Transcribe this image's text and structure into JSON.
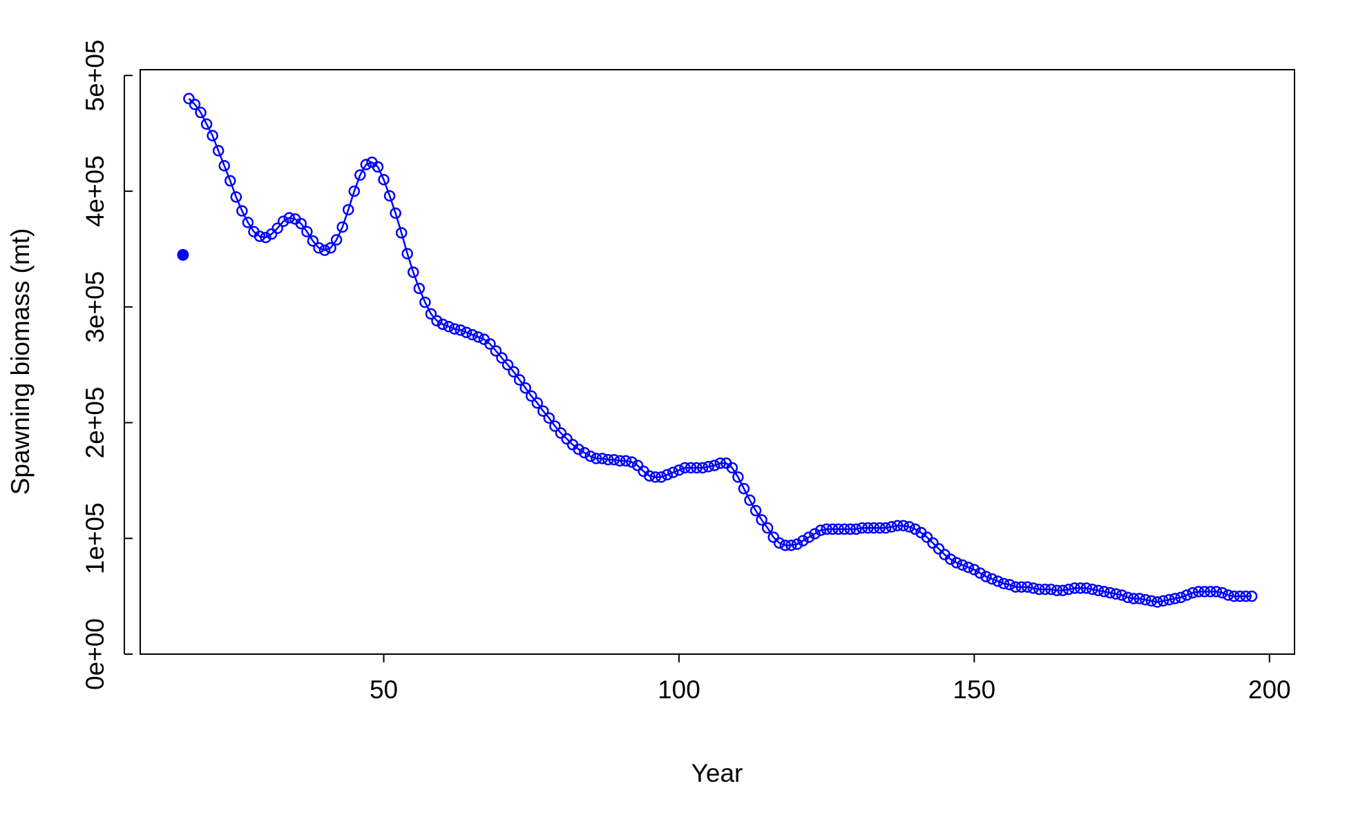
{
  "chart_data": {
    "type": "scatter",
    "x_label": "Year",
    "y_label": "Spawning biomass (mt)",
    "xlim": [
      8.76,
      204.24
    ],
    "ylim": [
      0,
      505000
    ],
    "xticks": [
      50,
      100,
      150,
      200
    ],
    "yticks": [
      {
        "value": 0,
        "label": "0e+00"
      },
      {
        "value": 100000,
        "label": "1e+05"
      },
      {
        "value": 200000,
        "label": "2e+05"
      },
      {
        "value": 300000,
        "label": "3e+05"
      },
      {
        "value": 400000,
        "label": "4e+05"
      },
      {
        "value": 500000,
        "label": "5e+05"
      }
    ],
    "grid": false,
    "series": [
      {
        "color": "#0000ff",
        "marker": "open",
        "line": true,
        "x": [
          17,
          18,
          19,
          20,
          21,
          22,
          23,
          24,
          25,
          26,
          27,
          28,
          29,
          30,
          31,
          32,
          33,
          34,
          35,
          36,
          37,
          38,
          39,
          40,
          41,
          42,
          43,
          44,
          45,
          46,
          47,
          48,
          49,
          50,
          51,
          52,
          53,
          54,
          55,
          56,
          57,
          58,
          59,
          60,
          61,
          62,
          63,
          64,
          65,
          66,
          67,
          68,
          69,
          70,
          71,
          72,
          73,
          74,
          75,
          76,
          77,
          78,
          79,
          80,
          81,
          82,
          83,
          84,
          85,
          86,
          87,
          88,
          89,
          90,
          91,
          92,
          93,
          94,
          95,
          96,
          97,
          98,
          99,
          100,
          101,
          102,
          103,
          104,
          105,
          106,
          107,
          108,
          109,
          110,
          111,
          112,
          113,
          114,
          115,
          116,
          117,
          118,
          119,
          120,
          121,
          122,
          123,
          124,
          125,
          126,
          127,
          128,
          129,
          130,
          131,
          132,
          133,
          134,
          135,
          136,
          137,
          138,
          139,
          140,
          141,
          142,
          143,
          144,
          145,
          146,
          147,
          148,
          149,
          150,
          151,
          152,
          153,
          154,
          155,
          156,
          157,
          158,
          159,
          160,
          161,
          162,
          163,
          164,
          165,
          166,
          167,
          168,
          169,
          170,
          171,
          172,
          173,
          174,
          175,
          176,
          177,
          178,
          179,
          180,
          181,
          182,
          183,
          184,
          185,
          186,
          187,
          188,
          189,
          190,
          191,
          192,
          193,
          194,
          195,
          196,
          197
        ],
        "values": [
          480000,
          475000,
          468000,
          458000,
          448000,
          435000,
          422000,
          409000,
          395000,
          383000,
          373000,
          365000,
          361000,
          360000,
          363000,
          368000,
          374000,
          377000,
          376000,
          372000,
          365000,
          357000,
          351000,
          349000,
          351000,
          358000,
          369000,
          384000,
          400000,
          414000,
          423000,
          425000,
          421000,
          410000,
          396000,
          381000,
          364000,
          346000,
          330000,
          316000,
          304000,
          294000,
          288000,
          285000,
          283000,
          281000,
          280000,
          278000,
          276000,
          274000,
          272000,
          268000,
          262000,
          256000,
          250000,
          244000,
          237000,
          230000,
          223000,
          217000,
          210000,
          204000,
          197000,
          191000,
          186000,
          181000,
          177000,
          174000,
          171000,
          169000,
          169000,
          168000,
          168000,
          167000,
          167000,
          166000,
          163000,
          158000,
          154000,
          153000,
          153000,
          155000,
          157000,
          159000,
          161000,
          161000,
          161000,
          161000,
          162000,
          163000,
          165000,
          165000,
          161000,
          153000,
          143000,
          133000,
          124000,
          116000,
          109000,
          101000,
          96000,
          94000,
          94000,
          95000,
          98000,
          101000,
          104000,
          107000,
          108000,
          108000,
          108000,
          108000,
          108000,
          108000,
          109000,
          109000,
          109000,
          109000,
          109000,
          110000,
          111000,
          111000,
          110000,
          108000,
          105000,
          101000,
          96000,
          91000,
          86000,
          82000,
          79000,
          77000,
          75000,
          73000,
          70000,
          67000,
          65000,
          63000,
          61000,
          60000,
          58000,
          58000,
          58000,
          57000,
          56000,
          56000,
          56000,
          55000,
          55000,
          56000,
          57000,
          57000,
          57000,
          56000,
          55000,
          54000,
          53000,
          52000,
          51000,
          49000,
          48000,
          48000,
          47000,
          46000,
          45000,
          46000,
          47000,
          48000,
          49000,
          51000,
          53000,
          54000,
          54000,
          54000,
          54000,
          53000,
          51000,
          50000,
          50000,
          50000,
          50000
        ]
      },
      {
        "color": "#0000ff",
        "marker": "filled",
        "line": false,
        "x": [
          16
        ],
        "values": [
          345000
        ]
      }
    ]
  }
}
